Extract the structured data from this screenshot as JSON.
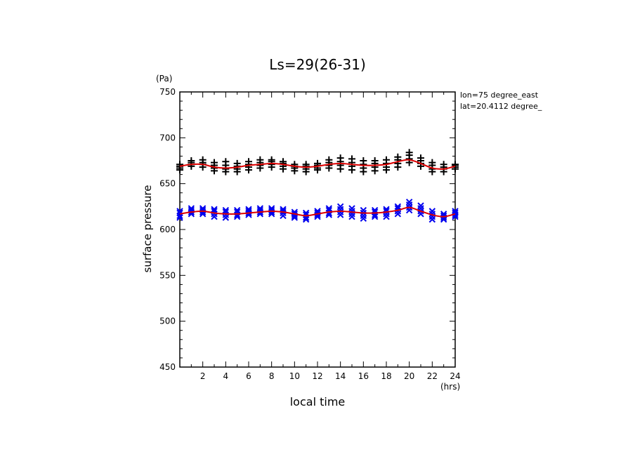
{
  "chart_data": {
    "type": "scatter",
    "title": "Ls=29(26-31)",
    "xlabel": "local time",
    "ylabel": "surface pressure",
    "x_unit": "(hrs)",
    "y_unit": "(Pa)",
    "xlim": [
      0,
      24
    ],
    "ylim": [
      450,
      750
    ],
    "x_ticks": [
      2,
      4,
      6,
      8,
      10,
      12,
      14,
      16,
      18,
      20,
      22,
      24
    ],
    "y_ticks": [
      450,
      500,
      550,
      600,
      650,
      700,
      750
    ],
    "annotation_lines": [
      "lon=75 degree_east",
      "lat=20.4112 degree_"
    ],
    "colors": {
      "upper_markers": "#000000",
      "lower_markers": "#0000ee",
      "fit_curve": "#dd0000"
    },
    "x": [
      0,
      1,
      2,
      3,
      4,
      5,
      6,
      7,
      8,
      9,
      10,
      11,
      12,
      13,
      14,
      15,
      16,
      17,
      18,
      19,
      20,
      21,
      22,
      23,
      24
    ],
    "series": [
      {
        "marker": "plus",
        "values": [
          [
            665,
            667,
            669,
            671
          ],
          [
            669,
            671,
            673,
            675
          ],
          [
            668,
            671,
            673,
            676
          ],
          [
            664,
            667,
            670,
            673
          ],
          [
            663,
            666,
            670,
            674
          ],
          [
            663,
            666,
            669,
            672
          ],
          [
            665,
            668,
            671,
            674
          ],
          [
            667,
            670,
            673,
            676
          ],
          [
            668,
            671,
            674,
            676
          ],
          [
            666,
            669,
            672,
            674
          ],
          [
            664,
            667,
            669,
            671
          ],
          [
            663,
            666,
            669,
            671
          ],
          [
            665,
            667,
            670,
            672
          ],
          [
            667,
            670,
            673,
            676
          ],
          [
            666,
            670,
            674,
            678
          ],
          [
            665,
            669,
            673,
            677
          ],
          [
            663,
            667,
            671,
            675
          ],
          [
            664,
            668,
            672,
            675
          ],
          [
            665,
            668,
            672,
            676
          ],
          [
            668,
            672,
            676,
            679
          ],
          [
            673,
            677,
            681,
            684
          ],
          [
            669,
            672,
            675,
            678
          ],
          [
            663,
            666,
            670,
            673
          ],
          [
            663,
            666,
            668,
            671
          ],
          [
            666,
            668,
            670,
            671
          ]
        ]
      },
      {
        "marker": "x",
        "values": [
          [
            613,
            615,
            618,
            620
          ],
          [
            617,
            619,
            621,
            623
          ],
          [
            617,
            619,
            621,
            623
          ],
          [
            614,
            617,
            620,
            622
          ],
          [
            613,
            616,
            619,
            621
          ],
          [
            614,
            616,
            619,
            621
          ],
          [
            616,
            618,
            620,
            622
          ],
          [
            617,
            619,
            621,
            623
          ],
          [
            617,
            619,
            621,
            623
          ],
          [
            615,
            618,
            620,
            622
          ],
          [
            613,
            615,
            617,
            619
          ],
          [
            611,
            613,
            616,
            618
          ],
          [
            614,
            616,
            618,
            620
          ],
          [
            616,
            618,
            621,
            623
          ],
          [
            616,
            619,
            622,
            625
          ],
          [
            614,
            617,
            620,
            623
          ],
          [
            612,
            615,
            618,
            621
          ],
          [
            614,
            616,
            619,
            621
          ],
          [
            614,
            617,
            620,
            622
          ],
          [
            617,
            620,
            623,
            625
          ],
          [
            621,
            624,
            627,
            630
          ],
          [
            617,
            620,
            623,
            626
          ],
          [
            611,
            614,
            617,
            620
          ],
          [
            611,
            613,
            615,
            617
          ],
          [
            614,
            616,
            618,
            620
          ]
        ]
      }
    ],
    "fit_curves": [
      {
        "values": [
          669,
          671,
          671,
          668,
          667,
          668,
          670,
          671,
          672,
          671,
          669,
          668,
          669,
          671,
          672,
          671,
          670,
          670,
          671,
          674,
          676,
          672,
          667,
          666,
          669
        ]
      },
      {
        "values": [
          617,
          619,
          620,
          618,
          617,
          617,
          618,
          619,
          620,
          619,
          617,
          615,
          617,
          619,
          620,
          619,
          618,
          618,
          619,
          621,
          624,
          620,
          616,
          614,
          617
        ]
      }
    ]
  }
}
